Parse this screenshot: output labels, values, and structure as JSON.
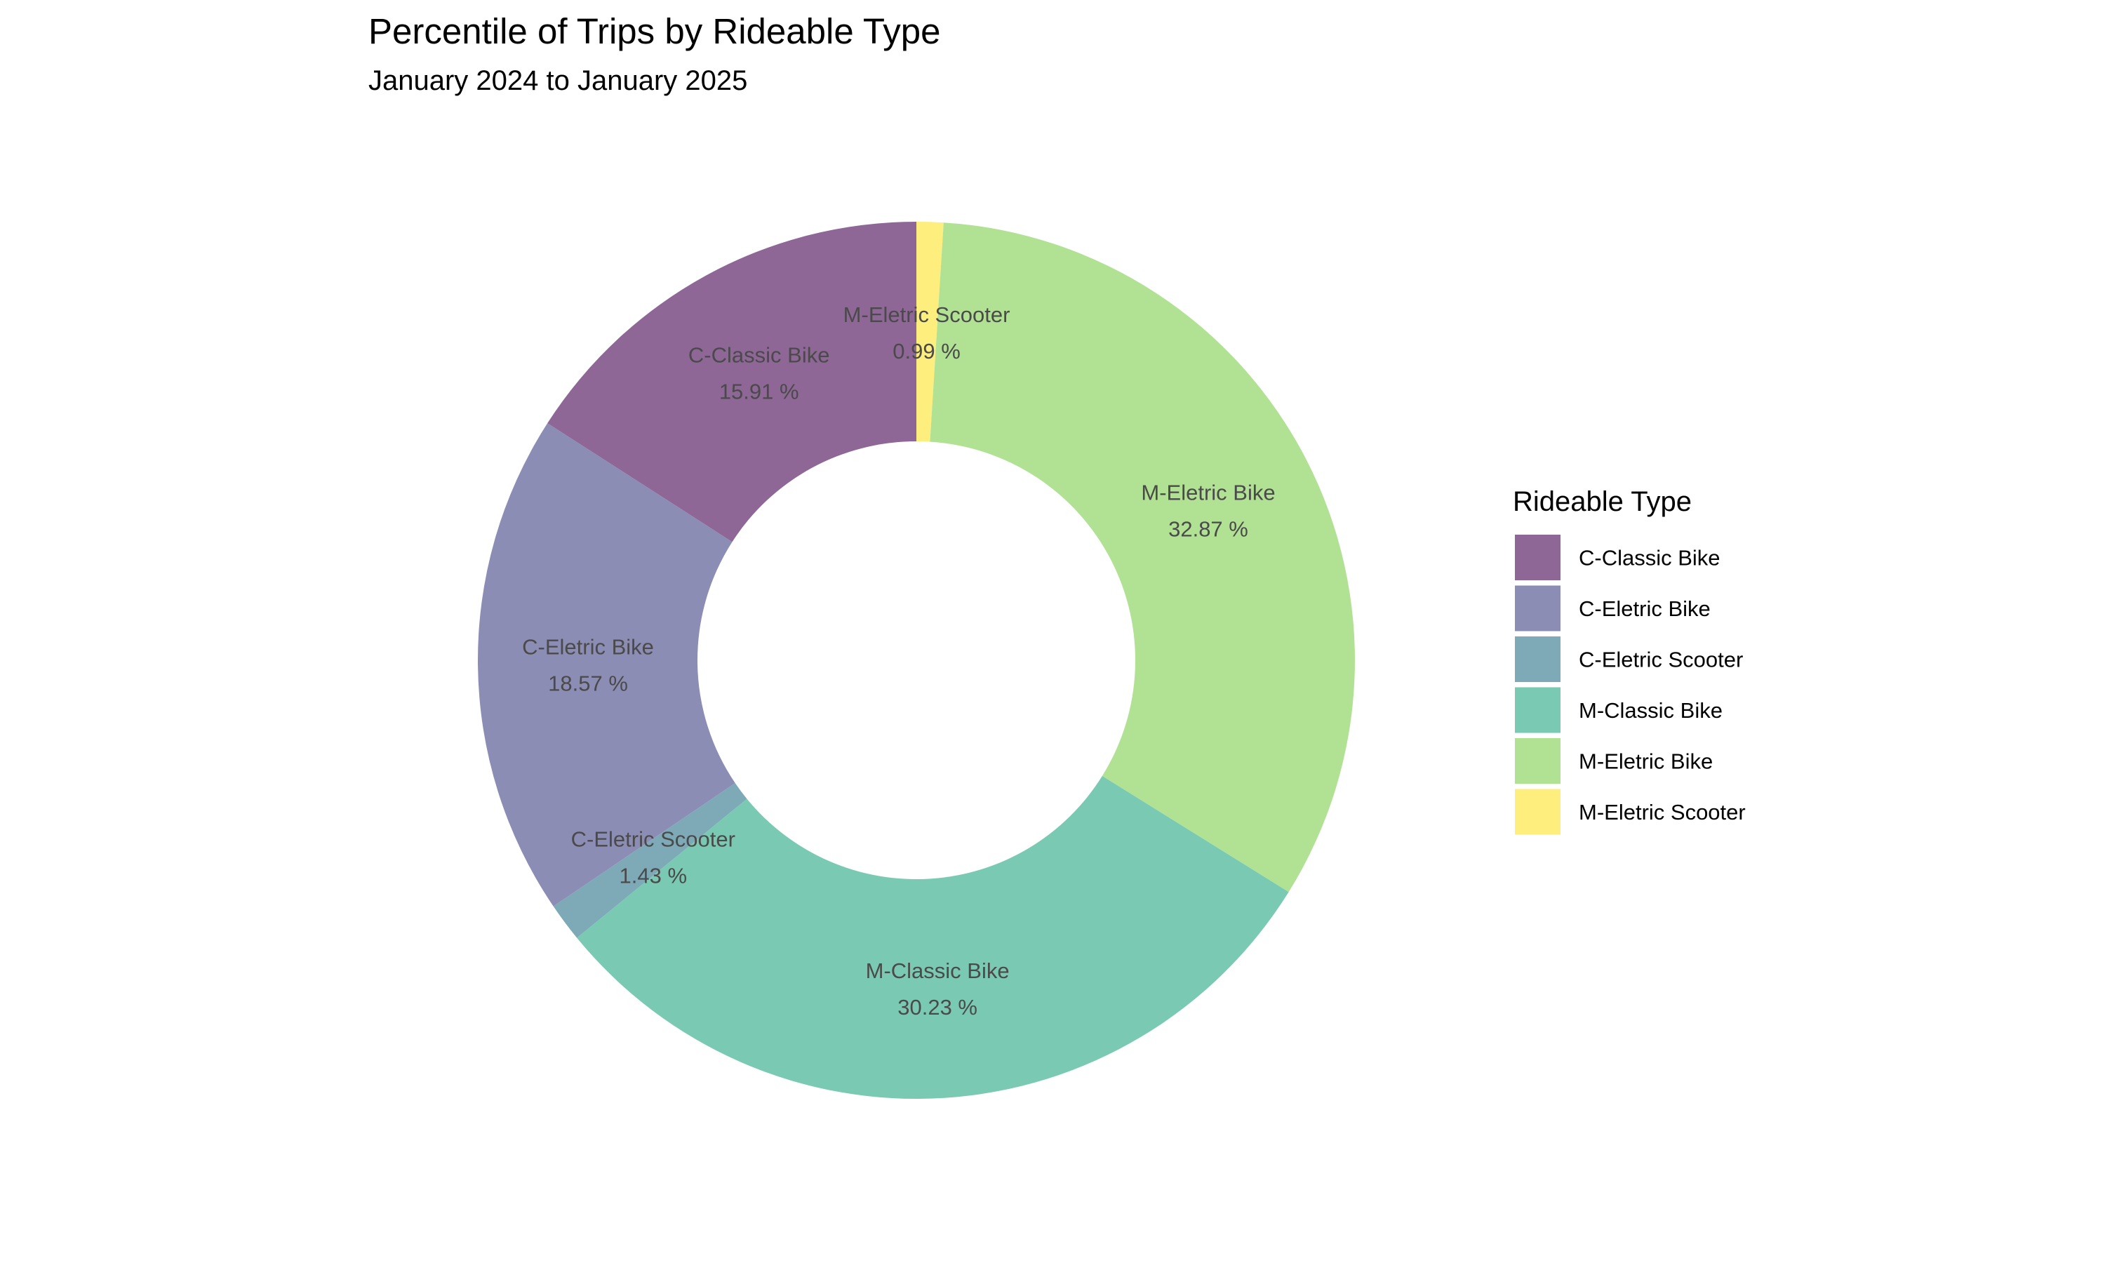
{
  "chart_data": {
    "type": "pie",
    "style": "donut",
    "title": "Percentile of Trips by Rideable Type",
    "subtitle": "January 2024 to January 2025",
    "legend_title": "Rideable Type",
    "legend_position": "right",
    "grid": false,
    "slices": [
      {
        "label": "C-Classic Bike",
        "value": 15.91,
        "value_text": "15.91 %",
        "color": "#8e6797"
      },
      {
        "label": "C-Eletric Bike",
        "value": 18.57,
        "value_text": "18.57 %",
        "color": "#8c8db5"
      },
      {
        "label": "C-Eletric Scooter",
        "value": 1.43,
        "value_text": "1.43 %",
        "color": "#7eaab8"
      },
      {
        "label": "M-Classic Bike",
        "value": 30.23,
        "value_text": "30.23 %",
        "color": "#7acab3"
      },
      {
        "label": "M-Eletric Bike",
        "value": 32.87,
        "value_text": "32.87 %",
        "color": "#b1e294"
      },
      {
        "label": "M-Eletric Scooter",
        "value": 0.99,
        "value_text": "0.99 %",
        "color": "#fdee7d"
      }
    ]
  }
}
